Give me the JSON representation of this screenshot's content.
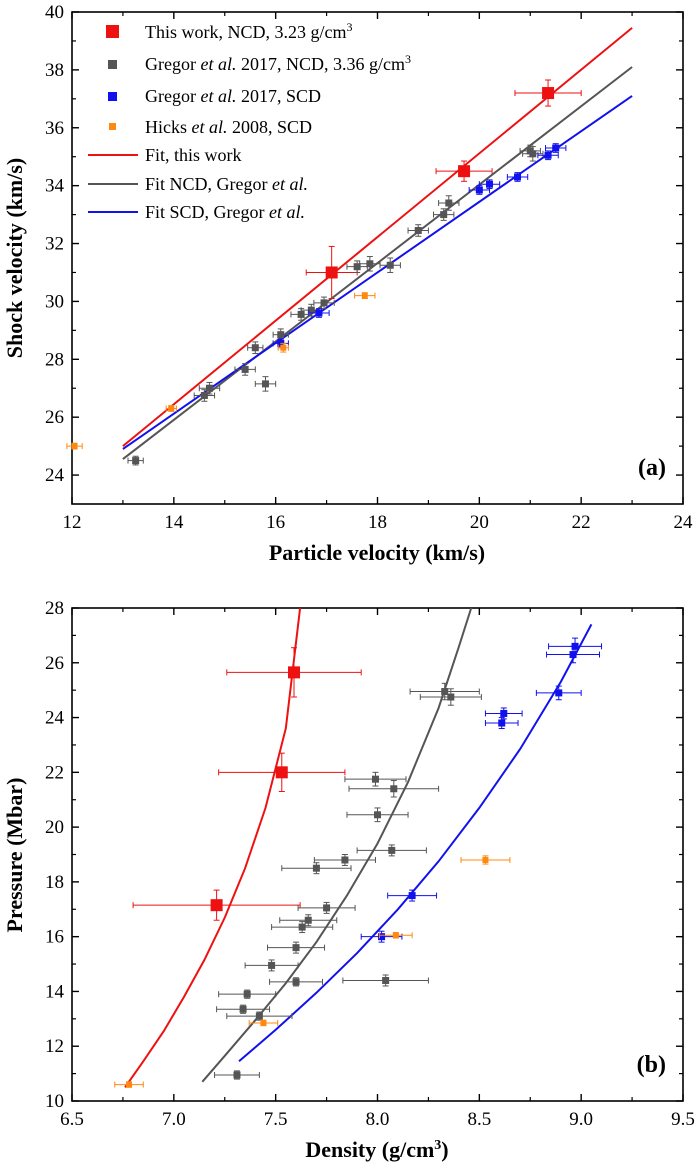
{
  "chart_data": [
    {
      "type": "scatter",
      "panel_label": "(a)",
      "xlabel": "Particle velocity (km/s)",
      "ylabel": "Shock velocity (km/s)",
      "xlim": [
        12,
        24
      ],
      "ylim": [
        23,
        40
      ],
      "xticks": [
        "12",
        "14",
        "16",
        "18",
        "20",
        "22",
        "24"
      ],
      "yticks": [
        "24",
        "26",
        "28",
        "30",
        "32",
        "34",
        "36",
        "38",
        "40"
      ],
      "legend_position": "top-left",
      "series": [
        {
          "name": "This work, NCD, 3.23 g/cm",
          "name_sup": "3",
          "color": "#ee1111",
          "marker": "square-large",
          "points": [
            {
              "x": 17.1,
              "y": 31.0,
              "xerr": 0.5,
              "yerr": 0.9
            },
            {
              "x": 19.7,
              "y": 34.5,
              "xerr": 0.55,
              "yerr": 0.35
            },
            {
              "x": 21.35,
              "y": 37.2,
              "xerr": 0.65,
              "yerr": 0.45
            }
          ]
        },
        {
          "name_pre": "Gregor ",
          "name_it": "et al.",
          "name": " 2017, NCD, 3.36 g/cm",
          "name_sup": "3",
          "color": "#555555",
          "marker": "square",
          "points": [
            {
              "x": 13.25,
              "y": 24.5,
              "xerr": 0.15,
              "yerr": 0.15
            },
            {
              "x": 14.6,
              "y": 26.75,
              "xerr": 0.2,
              "yerr": 0.2
            },
            {
              "x": 14.7,
              "y": 27.0,
              "xerr": 0.2,
              "yerr": 0.2
            },
            {
              "x": 15.4,
              "y": 27.65,
              "xerr": 0.2,
              "yerr": 0.2
            },
            {
              "x": 15.6,
              "y": 28.4,
              "xerr": 0.15,
              "yerr": 0.2
            },
            {
              "x": 15.8,
              "y": 27.15,
              "xerr": 0.2,
              "yerr": 0.25
            },
            {
              "x": 16.1,
              "y": 28.85,
              "xerr": 0.15,
              "yerr": 0.2
            },
            {
              "x": 16.5,
              "y": 29.55,
              "xerr": 0.2,
              "yerr": 0.2
            },
            {
              "x": 16.7,
              "y": 29.7,
              "xerr": 0.2,
              "yerr": 0.2
            },
            {
              "x": 16.95,
              "y": 29.95,
              "xerr": 0.2,
              "yerr": 0.2
            },
            {
              "x": 17.6,
              "y": 31.2,
              "xerr": 0.2,
              "yerr": 0.2
            },
            {
              "x": 17.85,
              "y": 31.3,
              "xerr": 0.2,
              "yerr": 0.25
            },
            {
              "x": 18.25,
              "y": 31.25,
              "xerr": 0.2,
              "yerr": 0.25
            },
            {
              "x": 18.8,
              "y": 32.45,
              "xerr": 0.2,
              "yerr": 0.2
            },
            {
              "x": 19.3,
              "y": 33.0,
              "xerr": 0.2,
              "yerr": 0.2
            },
            {
              "x": 19.4,
              "y": 33.4,
              "xerr": 0.2,
              "yerr": 0.25
            },
            {
              "x": 21.0,
              "y": 35.2,
              "xerr": 0.2,
              "yerr": 0.2
            },
            {
              "x": 21.05,
              "y": 35.1,
              "xerr": 0.2,
              "yerr": 0.25
            }
          ]
        },
        {
          "name_pre": "Gregor ",
          "name_it": "et al.",
          "name": " 2017, SCD",
          "color": "#1111ee",
          "marker": "square",
          "points": [
            {
              "x": 16.1,
              "y": 28.55,
              "xerr": 0.15,
              "yerr": 0.15
            },
            {
              "x": 16.85,
              "y": 29.6,
              "xerr": 0.2,
              "yerr": 0.15
            },
            {
              "x": 20.0,
              "y": 33.85,
              "xerr": 0.2,
              "yerr": 0.15
            },
            {
              "x": 20.2,
              "y": 34.05,
              "xerr": 0.2,
              "yerr": 0.15
            },
            {
              "x": 20.75,
              "y": 34.3,
              "xerr": 0.2,
              "yerr": 0.15
            },
            {
              "x": 21.35,
              "y": 35.05,
              "xerr": 0.2,
              "yerr": 0.15
            },
            {
              "x": 21.5,
              "y": 35.3,
              "xerr": 0.2,
              "yerr": 0.15
            }
          ]
        },
        {
          "name_pre": "Hicks ",
          "name_it": "et al.",
          "name": " 2008, SCD",
          "color": "#ff8811",
          "marker": "square-small",
          "points": [
            {
              "x": 12.05,
              "y": 25.0,
              "xerr": 0.15,
              "yerr": 0.1
            },
            {
              "x": 13.95,
              "y": 26.3,
              "xerr": 0.1,
              "yerr": 0.1
            },
            {
              "x": 16.15,
              "y": 28.4,
              "xerr": 0.1,
              "yerr": 0.15
            },
            {
              "x": 17.75,
              "y": 30.2,
              "xerr": 0.2,
              "yerr": 0.1
            }
          ]
        }
      ],
      "fits": [
        {
          "name": "Fit, this work",
          "color": "#ee1111",
          "x": [
            13.0,
            23.0
          ],
          "y": [
            25.0,
            39.45
          ]
        },
        {
          "name": "Fit NCD, Gregor ",
          "name_it": "et al.",
          "color": "#555555",
          "x": [
            13.0,
            23.0
          ],
          "y": [
            24.55,
            38.1
          ]
        },
        {
          "name": "Fit SCD, Gregor ",
          "name_it": "et al.",
          "color": "#1111ee",
          "x": [
            13.0,
            23.0
          ],
          "y": [
            24.9,
            37.1
          ]
        }
      ]
    },
    {
      "type": "scatter",
      "panel_label": "(b)",
      "xlabel": "Density (g/cm",
      "xlabel_sup": "3",
      "xlabel_post": ")",
      "ylabel": "Pressure (Mbar)",
      "xlim": [
        6.5,
        9.5
      ],
      "ylim": [
        10,
        28
      ],
      "xticks": [
        "6.5",
        "7.0",
        "7.5",
        "8.0",
        "8.5",
        "9.0",
        "9.5"
      ],
      "yticks": [
        "10",
        "12",
        "14",
        "16",
        "18",
        "20",
        "22",
        "24",
        "26",
        "28"
      ],
      "series": [
        {
          "name": "This work, NCD",
          "color": "#ee1111",
          "marker": "square-large",
          "points": [
            {
              "x": 7.21,
              "y": 17.15,
              "xerr": 0.41,
              "yerr": 0.55
            },
            {
              "x": 7.53,
              "y": 22.0,
              "xerr": 0.31,
              "yerr": 0.7
            },
            {
              "x": 7.59,
              "y": 25.65,
              "xerr": 0.33,
              "yerr": 0.9
            }
          ]
        },
        {
          "name": "Gregor et al. 2017, NCD",
          "color": "#555555",
          "marker": "square",
          "points": [
            {
              "x": 7.31,
              "y": 10.95,
              "xerr": 0.11,
              "yerr": 0.15
            },
            {
              "x": 7.42,
              "y": 13.1,
              "xerr": 0.16,
              "yerr": 0.15
            },
            {
              "x": 7.34,
              "y": 13.35,
              "xerr": 0.13,
              "yerr": 0.15
            },
            {
              "x": 7.36,
              "y": 13.9,
              "xerr": 0.14,
              "yerr": 0.15
            },
            {
              "x": 7.6,
              "y": 14.35,
              "xerr": 0.13,
              "yerr": 0.15
            },
            {
              "x": 8.04,
              "y": 14.4,
              "xerr": 0.21,
              "yerr": 0.2
            },
            {
              "x": 7.48,
              "y": 14.95,
              "xerr": 0.13,
              "yerr": 0.2
            },
            {
              "x": 7.6,
              "y": 15.6,
              "xerr": 0.14,
              "yerr": 0.2
            },
            {
              "x": 7.63,
              "y": 16.35,
              "xerr": 0.15,
              "yerr": 0.2
            },
            {
              "x": 7.66,
              "y": 16.6,
              "xerr": 0.14,
              "yerr": 0.2
            },
            {
              "x": 7.75,
              "y": 17.05,
              "xerr": 0.14,
              "yerr": 0.2
            },
            {
              "x": 7.7,
              "y": 18.5,
              "xerr": 0.17,
              "yerr": 0.2
            },
            {
              "x": 7.84,
              "y": 18.8,
              "xerr": 0.15,
              "yerr": 0.2
            },
            {
              "x": 8.07,
              "y": 19.15,
              "xerr": 0.17,
              "yerr": 0.2
            },
            {
              "x": 8.0,
              "y": 20.45,
              "xerr": 0.15,
              "yerr": 0.25
            },
            {
              "x": 8.08,
              "y": 21.4,
              "xerr": 0.22,
              "yerr": 0.3
            },
            {
              "x": 7.99,
              "y": 21.75,
              "xerr": 0.15,
              "yerr": 0.25
            },
            {
              "x": 8.36,
              "y": 24.75,
              "xerr": 0.15,
              "yerr": 0.3
            },
            {
              "x": 8.33,
              "y": 24.95,
              "xerr": 0.17,
              "yerr": 0.3
            }
          ]
        },
        {
          "name": "Gregor et al. 2017, SCD",
          "color": "#1111ee",
          "marker": "square",
          "points": [
            {
              "x": 8.02,
              "y": 16.0,
              "xerr": 0.1,
              "yerr": 0.2
            },
            {
              "x": 8.17,
              "y": 17.5,
              "xerr": 0.12,
              "yerr": 0.2
            },
            {
              "x": 8.61,
              "y": 23.8,
              "xerr": 0.08,
              "yerr": 0.2
            },
            {
              "x": 8.62,
              "y": 24.15,
              "xerr": 0.09,
              "yerr": 0.2
            },
            {
              "x": 8.89,
              "y": 24.9,
              "xerr": 0.11,
              "yerr": 0.25
            },
            {
              "x": 8.96,
              "y": 26.3,
              "xerr": 0.13,
              "yerr": 0.3
            },
            {
              "x": 8.97,
              "y": 26.6,
              "xerr": 0.13,
              "yerr": 0.3
            }
          ]
        },
        {
          "name": "Hicks et al. 2008, SCD",
          "color": "#ff8811",
          "marker": "square-small",
          "points": [
            {
              "x": 6.78,
              "y": 10.6,
              "xerr": 0.07,
              "yerr": 0.1
            },
            {
              "x": 7.44,
              "y": 12.85,
              "xerr": 0.07,
              "yerr": 0.1
            },
            {
              "x": 8.09,
              "y": 16.05,
              "xerr": 0.08,
              "yerr": 0.1
            },
            {
              "x": 8.53,
              "y": 18.8,
              "xerr": 0.12,
              "yerr": 0.15
            }
          ]
        }
      ],
      "fits": [
        {
          "name": "Fit, this work",
          "color": "#ee1111",
          "x": [
            6.76,
            6.85,
            6.95,
            7.05,
            7.15,
            7.25,
            7.35,
            7.45,
            7.55,
            7.62
          ],
          "y": [
            10.5,
            11.45,
            12.55,
            13.8,
            15.15,
            16.7,
            18.5,
            20.7,
            23.6,
            28.0
          ]
        },
        {
          "name": "Fit NCD, Gregor et al.",
          "color": "#555555",
          "x": [
            7.14,
            7.25,
            7.4,
            7.55,
            7.7,
            7.85,
            8.0,
            8.15,
            8.3,
            8.4,
            8.46
          ],
          "y": [
            10.7,
            11.65,
            12.95,
            14.3,
            15.8,
            17.5,
            19.4,
            21.65,
            24.35,
            26.6,
            28.0
          ]
        },
        {
          "name": "Fit SCD, Gregor et al.",
          "color": "#1111ee",
          "x": [
            7.32,
            7.5,
            7.7,
            7.9,
            8.1,
            8.3,
            8.5,
            8.7,
            8.9,
            9.05
          ],
          "y": [
            11.45,
            12.6,
            13.95,
            15.4,
            17.0,
            18.75,
            20.7,
            22.85,
            25.3,
            27.4
          ]
        }
      ]
    }
  ]
}
